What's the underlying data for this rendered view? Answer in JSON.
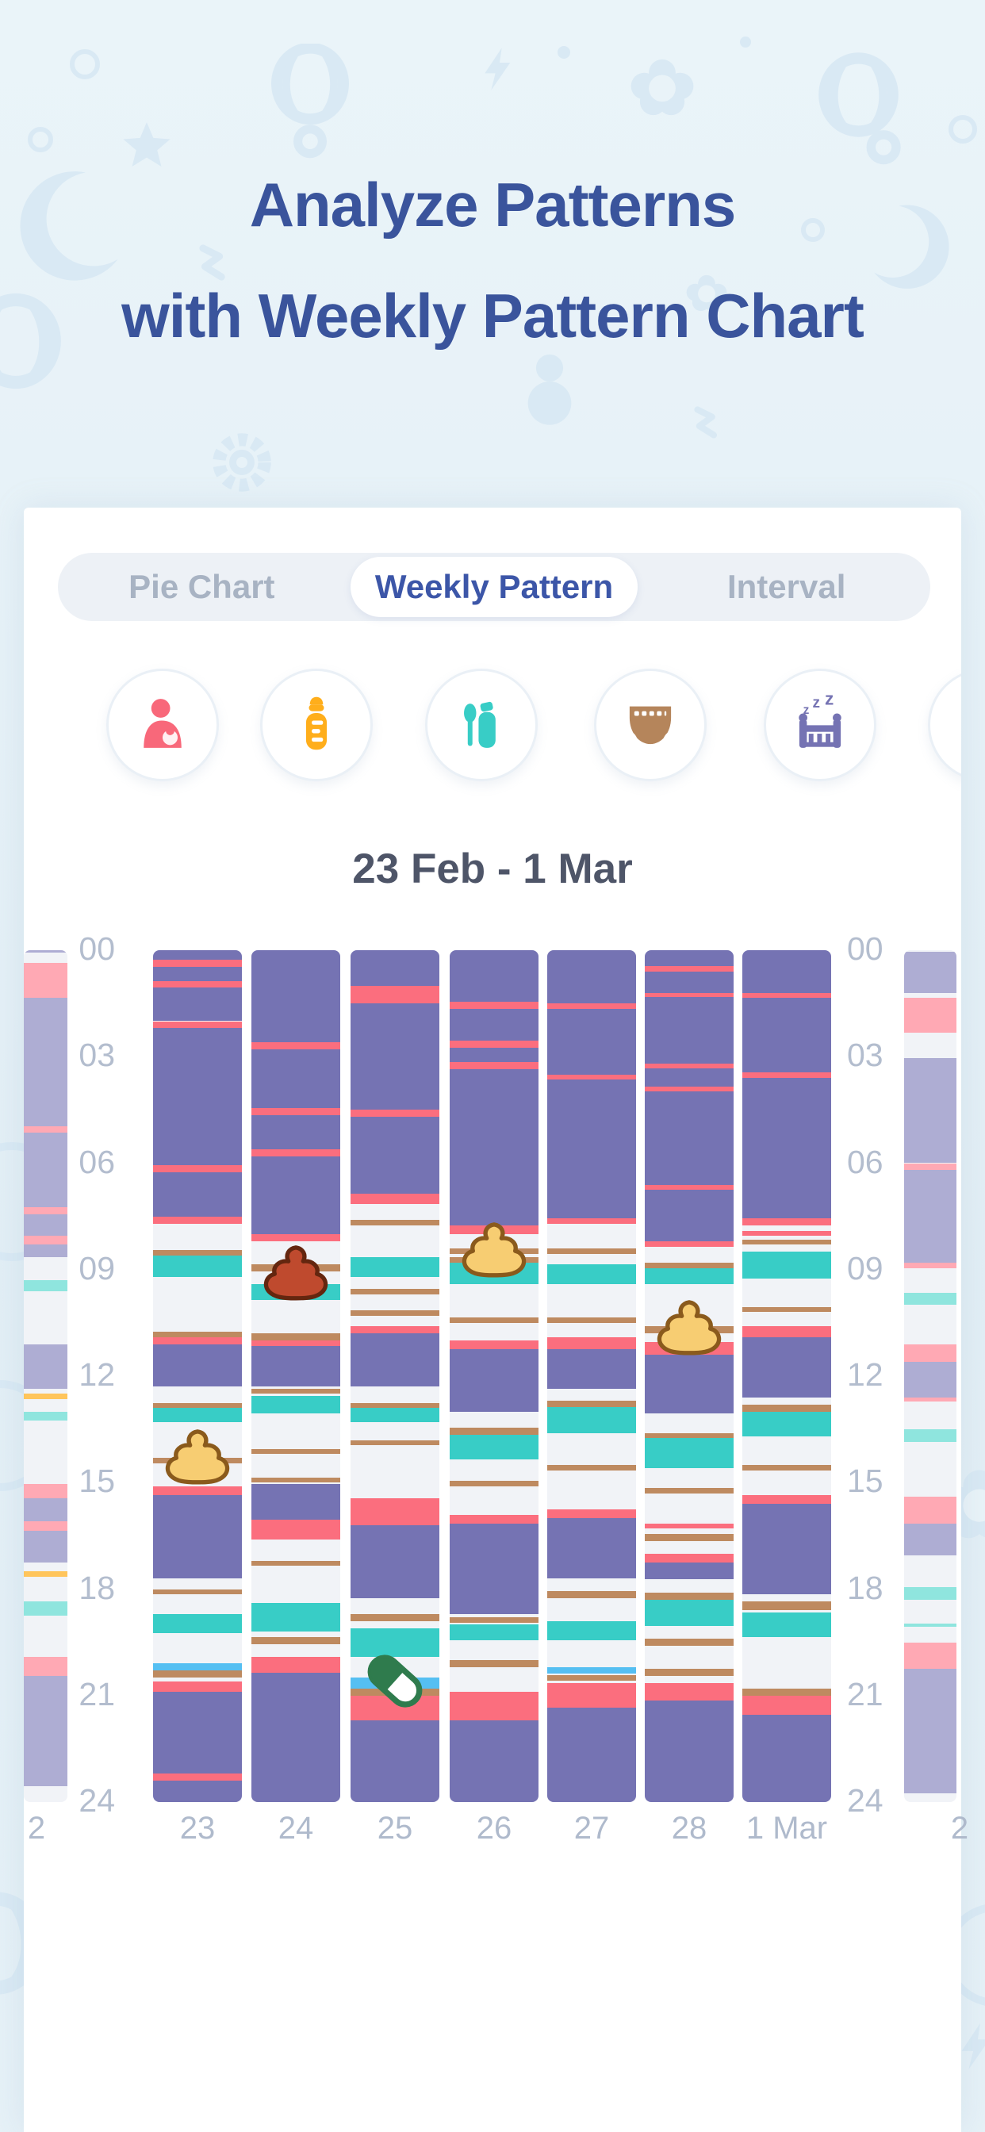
{
  "title": {
    "line1": "Analyze Patterns",
    "line2": "with Weekly Pattern Chart"
  },
  "tabs": {
    "items": [
      {
        "label": "Pie Chart",
        "active": false
      },
      {
        "label": "Weekly Pattern",
        "active": true
      },
      {
        "label": "Interval",
        "active": false
      }
    ]
  },
  "categories": {
    "items": [
      {
        "name": "breastfeeding",
        "color": "#F8687A"
      },
      {
        "name": "bottle",
        "color": "#FFAE1B"
      },
      {
        "name": "baby-food",
        "color": "#38CDC6"
      },
      {
        "name": "diaper",
        "color": "#B5855B"
      },
      {
        "name": "sleep",
        "color": "#7573B3"
      },
      {
        "name": "next-arrow",
        "color": "#CBDC82"
      }
    ]
  },
  "date_range": "23 Feb - 1 Mar",
  "chart_data": {
    "type": "weekly-pattern-timeline",
    "title": "Weekly Pattern 23 Feb - 1 Mar",
    "y_axis": {
      "unit": "hour",
      "min": 0,
      "max": 24,
      "ticks": [
        "00",
        "03",
        "06",
        "09",
        "12",
        "15",
        "18",
        "21",
        "24"
      ]
    },
    "palette": {
      "p": "#7573B3",
      "r": "#FB6E7E",
      "t": "#38CDC6",
      "b": "#BE8A60",
      "lb": "#55BFF2",
      "or": "#FFC55C",
      "fp": "#AEADD3",
      "fpk": "#FFA9B4",
      "ft": "#8FE5DE"
    },
    "columns": [
      {
        "day_label": "2",
        "faded": true,
        "segments": [
          [
            0,
            0.07,
            "fp"
          ],
          [
            0.35,
            1.35,
            "fpk"
          ],
          [
            1.35,
            4.95,
            "fp"
          ],
          [
            4.95,
            5.15,
            "fpk"
          ],
          [
            5.15,
            7.25,
            "fp"
          ],
          [
            7.25,
            7.45,
            "fpk"
          ],
          [
            7.45,
            8.05,
            "fp"
          ],
          [
            8.05,
            8.3,
            "fpk"
          ],
          [
            8.3,
            8.65,
            "fp"
          ],
          [
            9.3,
            9.6,
            "ft"
          ],
          [
            11.1,
            12.35,
            "fp"
          ],
          [
            12.5,
            12.65,
            "or"
          ],
          [
            13,
            13.25,
            "ft"
          ],
          [
            15.05,
            15.45,
            "fpk"
          ],
          [
            15.45,
            16.1,
            "fp"
          ],
          [
            16.1,
            16.35,
            "fpk"
          ],
          [
            16.35,
            17.25,
            "fp"
          ],
          [
            17.5,
            17.65,
            "or"
          ],
          [
            18.35,
            18.75,
            "ft"
          ],
          [
            19.9,
            20.45,
            "fpk"
          ],
          [
            20.45,
            23.55,
            "fp"
          ]
        ]
      },
      {
        "day_label": "23",
        "faded": false,
        "segments": [
          [
            0,
            0.27,
            "p"
          ],
          [
            0.27,
            0.47,
            "r"
          ],
          [
            0.47,
            0.88,
            "p"
          ],
          [
            0.88,
            1.05,
            "r"
          ],
          [
            1.05,
            2,
            "p"
          ],
          [
            2,
            2.2,
            "r"
          ],
          [
            2.2,
            6.05,
            "p"
          ],
          [
            6.05,
            6.25,
            "r"
          ],
          [
            6.25,
            7.5,
            "p"
          ],
          [
            7.5,
            7.7,
            "r"
          ],
          [
            8.45,
            8.6,
            "b"
          ],
          [
            8.6,
            9.2,
            "t"
          ],
          [
            10.75,
            10.9,
            "b"
          ],
          [
            10.9,
            11.1,
            "r"
          ],
          [
            11.1,
            12.3,
            "p"
          ],
          [
            12.75,
            12.9,
            "b"
          ],
          [
            12.9,
            13.3,
            "t"
          ],
          [
            14.3,
            14.45,
            "b"
          ],
          [
            15.1,
            15.35,
            "r"
          ],
          [
            15.35,
            17.7,
            "p"
          ],
          [
            18,
            18.15,
            "b"
          ],
          [
            18.7,
            19.25,
            "t"
          ],
          [
            20.1,
            20.3,
            "lb"
          ],
          [
            20.3,
            20.5,
            "b"
          ],
          [
            20.6,
            20.9,
            "r"
          ],
          [
            20.9,
            23.2,
            "p"
          ],
          [
            23.2,
            23.4,
            "r"
          ],
          [
            23.4,
            24,
            "p"
          ]
        ]
      },
      {
        "day_label": "24",
        "faded": false,
        "segments": [
          [
            0,
            2.6,
            "p"
          ],
          [
            2.6,
            2.8,
            "r"
          ],
          [
            2.8,
            4.45,
            "p"
          ],
          [
            4.45,
            4.65,
            "r"
          ],
          [
            4.65,
            5.6,
            "p"
          ],
          [
            5.6,
            5.8,
            "r"
          ],
          [
            5.8,
            8,
            "p"
          ],
          [
            8,
            8.2,
            "r"
          ],
          [
            8.85,
            9.05,
            "b"
          ],
          [
            9.4,
            9.85,
            "t"
          ],
          [
            10.8,
            11,
            "b"
          ],
          [
            11,
            11.15,
            "r"
          ],
          [
            11.15,
            12.3,
            "p"
          ],
          [
            12.35,
            12.5,
            "b"
          ],
          [
            12.55,
            13.05,
            "t"
          ],
          [
            14.05,
            14.2,
            "b"
          ],
          [
            14.85,
            15,
            "b"
          ],
          [
            15.05,
            16.05,
            "p"
          ],
          [
            16.05,
            16.6,
            "r"
          ],
          [
            17.2,
            17.35,
            "b"
          ],
          [
            18.4,
            19.2,
            "t"
          ],
          [
            19.35,
            19.55,
            "b"
          ],
          [
            19.9,
            20.35,
            "r"
          ],
          [
            20.35,
            24,
            "p"
          ]
        ]
      },
      {
        "day_label": "25",
        "faded": false,
        "segments": [
          [
            0,
            1,
            "p"
          ],
          [
            1,
            1.5,
            "r"
          ],
          [
            1.5,
            4.5,
            "p"
          ],
          [
            4.5,
            4.7,
            "r"
          ],
          [
            4.7,
            6.85,
            "p"
          ],
          [
            6.85,
            7.15,
            "r"
          ],
          [
            7.6,
            7.75,
            "b"
          ],
          [
            8.65,
            9.2,
            "t"
          ],
          [
            9.55,
            9.7,
            "b"
          ],
          [
            10.15,
            10.3,
            "b"
          ],
          [
            10.6,
            10.8,
            "r"
          ],
          [
            10.8,
            12.3,
            "p"
          ],
          [
            12.75,
            12.9,
            "b"
          ],
          [
            12.9,
            13.3,
            "t"
          ],
          [
            13.8,
            13.95,
            "b"
          ],
          [
            15.45,
            16.2,
            "r"
          ],
          [
            16.2,
            18.25,
            "p"
          ],
          [
            18.7,
            18.9,
            "b"
          ],
          [
            19.1,
            19.9,
            "t"
          ],
          [
            20.5,
            20.8,
            "lb"
          ],
          [
            20.8,
            21,
            "b"
          ],
          [
            21,
            21.7,
            "r"
          ],
          [
            21.7,
            24,
            "p"
          ]
        ]
      },
      {
        "day_label": "26",
        "faded": false,
        "segments": [
          [
            0,
            1.45,
            "p"
          ],
          [
            1.45,
            1.65,
            "r"
          ],
          [
            1.65,
            2.55,
            "p"
          ],
          [
            2.55,
            2.75,
            "r"
          ],
          [
            2.75,
            3.15,
            "p"
          ],
          [
            3.15,
            3.35,
            "r"
          ],
          [
            3.35,
            7.75,
            "p"
          ],
          [
            7.75,
            8,
            "r"
          ],
          [
            8.4,
            8.55,
            "b"
          ],
          [
            8.65,
            8.8,
            "b"
          ],
          [
            8.8,
            9.4,
            "t"
          ],
          [
            10.35,
            10.5,
            "b"
          ],
          [
            11,
            11.25,
            "r"
          ],
          [
            11.25,
            13,
            "p"
          ],
          [
            13.45,
            13.65,
            "b"
          ],
          [
            13.65,
            14.35,
            "t"
          ],
          [
            14.95,
            15.1,
            "b"
          ],
          [
            15.9,
            16.15,
            "r"
          ],
          [
            16.15,
            18.7,
            "p"
          ],
          [
            18.8,
            18.95,
            "b"
          ],
          [
            19,
            19.45,
            "t"
          ],
          [
            20,
            20.2,
            "b"
          ],
          [
            20.9,
            21.7,
            "r"
          ],
          [
            21.7,
            24,
            "p"
          ]
        ]
      },
      {
        "day_label": "27",
        "faded": false,
        "segments": [
          [
            0,
            1.5,
            "p"
          ],
          [
            1.5,
            1.65,
            "r"
          ],
          [
            1.65,
            3.5,
            "p"
          ],
          [
            3.5,
            3.65,
            "r"
          ],
          [
            3.65,
            7.55,
            "p"
          ],
          [
            7.55,
            7.72,
            "r"
          ],
          [
            8.4,
            8.55,
            "b"
          ],
          [
            8.85,
            9.4,
            "t"
          ],
          [
            10.35,
            10.5,
            "b"
          ],
          [
            10.9,
            11.25,
            "r"
          ],
          [
            11.25,
            12.35,
            "p"
          ],
          [
            12.7,
            12.87,
            "b"
          ],
          [
            12.87,
            13.6,
            "t"
          ],
          [
            14.5,
            14.65,
            "b"
          ],
          [
            15.75,
            16,
            "r"
          ],
          [
            16,
            17.7,
            "p"
          ],
          [
            18.05,
            18.25,
            "b"
          ],
          [
            18.9,
            19.45,
            "t"
          ],
          [
            20.2,
            20.38,
            "lb"
          ],
          [
            20.42,
            20.58,
            "b"
          ],
          [
            20.65,
            21.35,
            "r"
          ],
          [
            21.35,
            24,
            "p"
          ]
        ]
      },
      {
        "day_label": "28",
        "faded": false,
        "segments": [
          [
            0,
            0.45,
            "p"
          ],
          [
            0.45,
            0.6,
            "r"
          ],
          [
            0.6,
            1.2,
            "p"
          ],
          [
            1.2,
            1.32,
            "r"
          ],
          [
            1.32,
            3.2,
            "p"
          ],
          [
            3.2,
            3.32,
            "r"
          ],
          [
            3.32,
            3.85,
            "p"
          ],
          [
            3.85,
            3.97,
            "r"
          ],
          [
            3.97,
            6.62,
            "p"
          ],
          [
            6.62,
            6.74,
            "r"
          ],
          [
            6.74,
            8.2,
            "p"
          ],
          [
            8.2,
            8.35,
            "r"
          ],
          [
            8.8,
            8.95,
            "b"
          ],
          [
            8.95,
            9.4,
            "t"
          ],
          [
            10.6,
            10.8,
            "b"
          ],
          [
            11.05,
            11.4,
            "r"
          ],
          [
            11.4,
            13.05,
            "p"
          ],
          [
            13.6,
            13.75,
            "b"
          ],
          [
            13.75,
            14.6,
            "t"
          ],
          [
            15.15,
            15.3,
            "b"
          ],
          [
            16.15,
            16.3,
            "r"
          ],
          [
            16.45,
            16.65,
            "b"
          ],
          [
            17,
            17.25,
            "r"
          ],
          [
            17.25,
            17.72,
            "p"
          ],
          [
            18.1,
            18.3,
            "b"
          ],
          [
            18.3,
            19.05,
            "t"
          ],
          [
            19.4,
            19.6,
            "b"
          ],
          [
            20.25,
            20.45,
            "b"
          ],
          [
            20.65,
            21.15,
            "r"
          ],
          [
            21.15,
            24,
            "p"
          ]
        ]
      },
      {
        "day_label": "1 Mar",
        "faded": false,
        "segments": [
          [
            0,
            1.2,
            "p"
          ],
          [
            1.2,
            1.35,
            "r"
          ],
          [
            1.35,
            3.45,
            "p"
          ],
          [
            3.45,
            3.6,
            "r"
          ],
          [
            3.6,
            7.55,
            "p"
          ],
          [
            7.55,
            7.75,
            "r"
          ],
          [
            7.9,
            8.05,
            "r"
          ],
          [
            8.15,
            8.3,
            "b"
          ],
          [
            8.5,
            9.25,
            "t"
          ],
          [
            10.05,
            10.2,
            "b"
          ],
          [
            10.6,
            10.9,
            "r"
          ],
          [
            10.9,
            12.6,
            "p"
          ],
          [
            12.8,
            13,
            "b"
          ],
          [
            13,
            13.7,
            "t"
          ],
          [
            14.5,
            14.65,
            "b"
          ],
          [
            15.35,
            15.6,
            "r"
          ],
          [
            15.6,
            18.15,
            "p"
          ],
          [
            18.35,
            18.6,
            "b"
          ],
          [
            18.65,
            19.35,
            "t"
          ],
          [
            20.8,
            21,
            "b"
          ],
          [
            21,
            21.55,
            "r"
          ],
          [
            21.55,
            24,
            "p"
          ]
        ]
      },
      {
        "day_label": "2",
        "faded": true,
        "segments": [
          [
            0.05,
            1.2,
            "fp"
          ],
          [
            1.33,
            2.33,
            "fpk"
          ],
          [
            3.05,
            6,
            "fp"
          ],
          [
            6,
            6.2,
            "fpk"
          ],
          [
            6.2,
            8.8,
            "fp"
          ],
          [
            8.8,
            8.95,
            "fpk"
          ],
          [
            9.65,
            10,
            "ft"
          ],
          [
            11.1,
            11.6,
            "fpk"
          ],
          [
            11.6,
            12.6,
            "fp"
          ],
          [
            12.6,
            12.72,
            "fpk"
          ],
          [
            13.5,
            13.85,
            "ft"
          ],
          [
            15.4,
            16.15,
            "fpk"
          ],
          [
            16.15,
            17.05,
            "fp"
          ],
          [
            17.95,
            18.3,
            "ft"
          ],
          [
            18.97,
            19.07,
            "ft"
          ],
          [
            19.5,
            20.25,
            "fpk"
          ],
          [
            20.25,
            23.75,
            "fp"
          ]
        ]
      }
    ],
    "markers": [
      {
        "col": 1,
        "hour": 14.4,
        "type": "poop-yellow"
      },
      {
        "col": 2,
        "hour": 9.2,
        "type": "poop-red"
      },
      {
        "col": 4,
        "hour": 8.55,
        "type": "poop-yellow"
      },
      {
        "col": 6,
        "hour": 10.75,
        "type": "poop-yellow"
      },
      {
        "col": 3,
        "hour": 20.65,
        "type": "pill"
      }
    ]
  }
}
